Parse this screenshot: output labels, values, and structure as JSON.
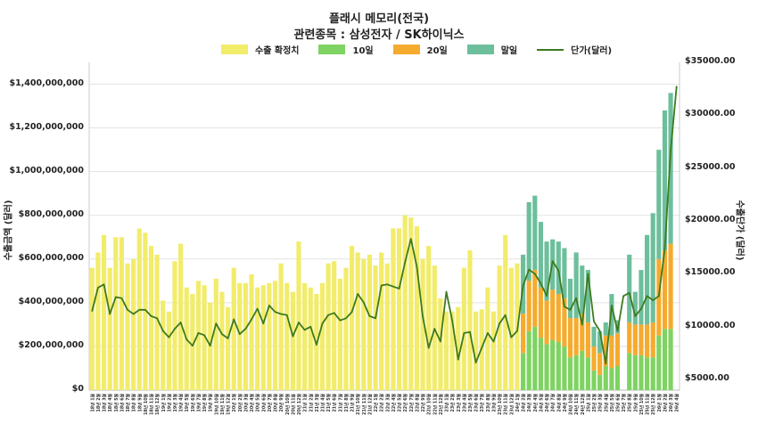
{
  "chart_data": {
    "type": "bar",
    "title": "플래시 메모리(전국)",
    "subtitle": "관련종목 : 삼성전자 / SK하이닉스",
    "ylabel": "수출금액 (달러)",
    "y2label": "수출단가 (달러)",
    "ylim": [
      0,
      1500000000
    ],
    "y2lim": [
      4000,
      35000
    ],
    "yticks": [
      "$0",
      "$200,000,000",
      "$400,000,000",
      "$600,000,000",
      "$800,000,000",
      "$1,000,000,000",
      "$1,200,000,000",
      "$1,400,000,000"
    ],
    "y2ticks": [
      "$5000.00",
      "$10000.00",
      "$15000.00",
      "$20000.00",
      "$25000.00",
      "$30000.00",
      "$35000.00"
    ],
    "legend": {
      "position": "top-center",
      "entries": [
        "수출 확정치",
        "10일",
        "20일",
        "말일",
        "단가(달러)"
      ]
    },
    "colors": {
      "confirmed": "#f2ec6b",
      "day10": "#7ed362",
      "day20": "#f5ab2e",
      "month_end": "#6dbf9c",
      "price_line": "#3e7a1f",
      "grid": "#e3e3e3"
    },
    "confirmed_values": [
      560000000,
      630000000,
      710000000,
      560000000,
      700000000,
      700000000,
      580000000,
      600000000,
      740000000,
      720000000,
      660000000,
      620000000,
      410000000,
      360000000,
      590000000,
      670000000,
      470000000,
      440000000,
      500000000,
      480000000,
      400000000,
      510000000,
      450000000,
      380000000,
      560000000,
      490000000,
      490000000,
      530000000,
      470000000,
      480000000,
      490000000,
      500000000,
      580000000,
      490000000,
      450000000,
      680000000,
      490000000,
      470000000,
      440000000,
      490000000,
      580000000,
      590000000,
      510000000,
      560000000,
      660000000,
      630000000,
      600000000,
      620000000,
      570000000,
      630000000,
      580000000,
      740000000,
      740000000,
      800000000,
      790000000,
      750000000,
      600000000,
      660000000,
      570000000,
      420000000,
      360000000,
      360000000,
      380000000,
      560000000,
      640000000,
      360000000,
      370000000,
      470000000,
      360000000,
      570000000,
      710000000,
      560000000,
      580000000
    ],
    "stacked_values": {
      "day10": [
        170000000,
        270000000,
        290000000,
        240000000,
        210000000,
        230000000,
        220000000,
        200000000,
        150000000,
        160000000,
        180000000,
        150000000,
        90000000,
        70000000,
        110000000,
        100000000,
        110000000,
        0,
        170000000,
        160000000,
        160000000,
        150000000,
        150000000,
        250000000,
        280000000,
        280000000
      ],
      "day20": [
        180000000,
        230000000,
        260000000,
        230000000,
        200000000,
        230000000,
        220000000,
        220000000,
        180000000,
        170000000,
        170000000,
        160000000,
        110000000,
        100000000,
        140000000,
        150000000,
        150000000,
        0,
        140000000,
        140000000,
        140000000,
        150000000,
        160000000,
        350000000,
        360000000,
        390000000
      ],
      "month_end": [
        270000000,
        360000000,
        340000000,
        300000000,
        270000000,
        230000000,
        240000000,
        230000000,
        180000000,
        300000000,
        220000000,
        240000000,
        90000000,
        100000000,
        60000000,
        190000000,
        60000000,
        0,
        310000000,
        150000000,
        250000000,
        410000000,
        500000000,
        500000000,
        640000000,
        690000000
      ]
    },
    "price_values": [
      11500,
      13700,
      14000,
      11200,
      12800,
      12700,
      11600,
      11200,
      11600,
      11600,
      11000,
      10800,
      9600,
      9000,
      9800,
      10400,
      8800,
      8200,
      9400,
      9200,
      8200,
      10300,
      9300,
      8900,
      10700,
      9300,
      9800,
      10700,
      11700,
      10300,
      12000,
      11400,
      11200,
      11100,
      9100,
      10400,
      9700,
      10000,
      8300,
      10300,
      11100,
      11300,
      10600,
      10800,
      11400,
      13100,
      12300,
      11000,
      10800,
      13900,
      14000,
      13800,
      13600,
      16100,
      18300,
      15700,
      11000,
      8000,
      9800,
      8600,
      13300,
      10600,
      6900,
      9400,
      9500,
      6600,
      8000,
      9400,
      8600,
      10300,
      11100,
      9000,
      9600,
      13900,
      15400,
      15000,
      14100,
      12900,
      16200,
      15300,
      11900,
      11600,
      12700,
      10200,
      15000,
      10500,
      9600,
      6500,
      12000,
      9600,
      12900,
      13200,
      11000,
      11700,
      12900,
      12500,
      12900,
      17400,
      26700,
      32700
    ],
    "x_labels": [
      "18년 1월",
      "18년 2월",
      "18년 3월",
      "18년 4월",
      "18년 5월",
      "18년 6월",
      "18년 7월",
      "18년 8월",
      "18년 9월",
      "18년 10월",
      "18년 11월",
      "18년 12월",
      "19년 1월",
      "19년 2월",
      "19년 3월",
      "19년 4월",
      "19년 5월",
      "19년 6월",
      "19년 7월",
      "19년 8월",
      "19년 9월",
      "19년 10월",
      "19년 11월",
      "19년 12월",
      "20년 1월",
      "20년 2월",
      "20년 3월",
      "20년 4월",
      "20년 5월",
      "20년 6월",
      "20년 7월",
      "20년 8월",
      "20년 9월",
      "20년 10월",
      "20년 11월",
      "20년 12월",
      "21년 1월",
      "21년 2월",
      "21년 3월",
      "21년 4월",
      "21년 5월",
      "21년 6월",
      "21년 7월",
      "21년 8월",
      "21년 9월",
      "21년 10월",
      "21년 11월",
      "21년 12월",
      "22년 1월",
      "22년 2월",
      "22년 3월",
      "22년 4월",
      "22년 5월",
      "22년 6월",
      "22년 7월",
      "22년 8월",
      "22년 9월",
      "22년 10월",
      "22년 11월",
      "22년 12월",
      "23년 1월",
      "23년 2월",
      "23년 3월",
      "23년 4월",
      "23년 5월",
      "23년 6월",
      "23년 7월",
      "23년 8월",
      "23년 9월",
      "23년 10월",
      "23년 11월",
      "23년 12월",
      "24년 1월",
      "24년 2월",
      "24년 3월",
      "24년 4월",
      "24년 5월",
      "24년 6월",
      "24년 7월",
      "24년 8월",
      "24년 9월",
      "24년 10월",
      "24년 11월",
      "24년 12월",
      "25년 1월",
      "25년 2월",
      "25년 3월",
      "25년 4월",
      "25년 5월",
      "25년 6월",
      "25년 7월",
      "25년 8월",
      "25년 9월",
      "25년 10월",
      "25년 11월",
      "25년 12월",
      "26년 1월",
      "26년 2월",
      "26년 3월",
      "26년 4월"
    ]
  }
}
